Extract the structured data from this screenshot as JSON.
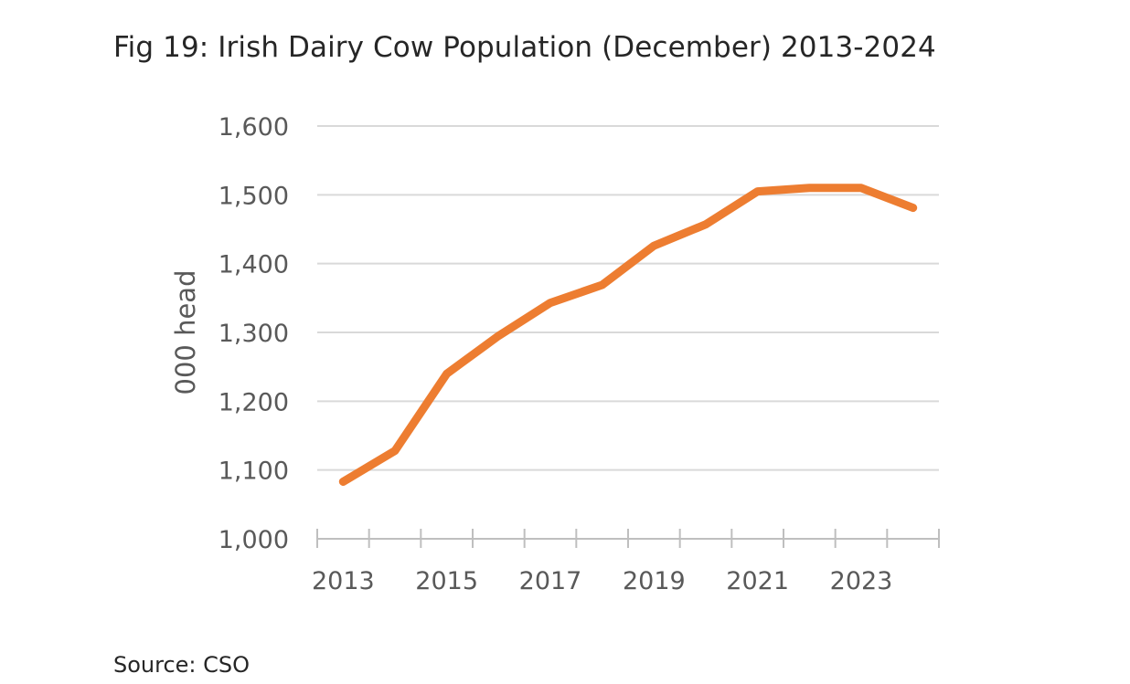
{
  "chart_data": {
    "type": "line",
    "title": "Fig 19: Irish Dairy Cow Population (December) 2013-2024",
    "ylabel": "000 head",
    "xlabel": "",
    "ylim": [
      1000,
      1600
    ],
    "y_ticks": [
      1000,
      1100,
      1200,
      1300,
      1400,
      1500,
      1600
    ],
    "y_tick_labels": [
      "1,000",
      "1,100",
      "1,200",
      "1,300",
      "1,400",
      "1,500",
      "1,600"
    ],
    "x": [
      2013,
      2014,
      2015,
      2016,
      2017,
      2018,
      2019,
      2020,
      2021,
      2022,
      2023,
      2024
    ],
    "x_tick_labels": [
      "2013",
      "2015",
      "2017",
      "2019",
      "2021",
      "2023"
    ],
    "x_tick_label_years": [
      2013,
      2015,
      2017,
      2019,
      2021,
      2023
    ],
    "series": [
      {
        "name": "",
        "color": "#ED7D31",
        "values": [
          1083,
          1128,
          1240,
          1295,
          1343,
          1369,
          1426,
          1457,
          1505,
          1510,
          1510,
          1481
        ]
      }
    ],
    "grid": true,
    "legend": "none"
  },
  "source": "Source: CSO"
}
